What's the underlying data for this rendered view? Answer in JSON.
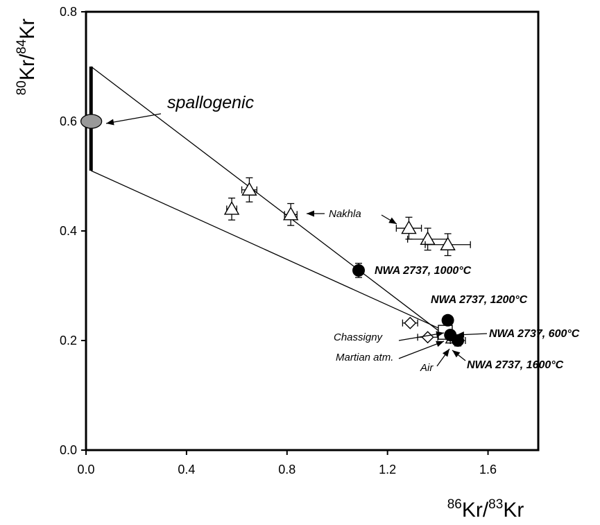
{
  "chart_data": {
    "type": "scatter",
    "title": "",
    "xlabel": {
      "sup1": "86",
      "base1": "Kr/",
      "sup2": "83",
      "base2": "Kr"
    },
    "ylabel": {
      "sup1": "80",
      "base1": "Kr/",
      "sup2": "84",
      "base2": "Kr"
    },
    "xlim": [
      0.0,
      1.8
    ],
    "ylim": [
      0.0,
      0.8
    ],
    "xticks": [
      "0.0",
      "0.4",
      "0.8",
      "1.2",
      "1.6"
    ],
    "xtick_values": [
      0.0,
      0.4,
      0.8,
      1.2,
      1.6
    ],
    "yticks": [
      "0.0",
      "0.2",
      "0.4",
      "0.6",
      "0.8"
    ],
    "ytick_values": [
      0.0,
      0.2,
      0.4,
      0.6,
      0.8
    ],
    "grid": false,
    "series": [
      {
        "label": "Nakhla",
        "marker": "triangle-open",
        "points": [
          {
            "x": 0.58,
            "y": 0.44,
            "xerr": 0.02,
            "yerr": 0.02
          },
          {
            "x": 0.65,
            "y": 0.475,
            "xerr": 0.03,
            "yerr": 0.022
          },
          {
            "x": 0.815,
            "y": 0.43,
            "xerr": 0.025,
            "yerr": 0.02
          },
          {
            "x": 1.285,
            "y": 0.405,
            "xerr": 0.05,
            "yerr": 0.02
          },
          {
            "x": 1.36,
            "y": 0.385,
            "xerr": 0.08,
            "yerr": 0.02
          },
          {
            "x": 1.44,
            "y": 0.375,
            "xerr": 0.09,
            "yerr": 0.02
          }
        ]
      },
      {
        "label": "NWA 2737",
        "marker": "circle-filled",
        "points": [
          {
            "x": 1.085,
            "y": 0.328,
            "xerr": 0.0,
            "yerr": 0.013,
            "label": "NWA 2737, 1000°C"
          },
          {
            "x": 1.44,
            "y": 0.237,
            "xerr": 0.0,
            "yerr": 0.0,
            "label": "NWA 2737, 1200°C"
          },
          {
            "x": 1.48,
            "y": 0.2,
            "xerr": 0.03,
            "yerr": 0.01,
            "label": "NWA 2737, 600°C"
          },
          {
            "x": 1.45,
            "y": 0.21,
            "xerr": 0.0,
            "yerr": 0.0,
            "label": "NWA 2737, 1600°C"
          }
        ]
      },
      {
        "label": "Chassigny",
        "marker": "diamond-open",
        "points": [
          {
            "x": 1.29,
            "y": 0.232,
            "xerr": 0.03,
            "yerr": 0.0
          },
          {
            "x": 1.36,
            "y": 0.206,
            "xerr": 0.04,
            "yerr": 0.0
          }
        ]
      },
      {
        "label": "Martian atm.",
        "marker": "square-open",
        "points": [
          {
            "x": 1.43,
            "y": 0.215,
            "xerr": 0.0,
            "yerr": 0.0
          }
        ]
      },
      {
        "label": "Air",
        "marker": "triangle-open",
        "points": [
          {
            "x": 1.46,
            "y": 0.205,
            "xerr": 0.0,
            "yerr": 0.0
          }
        ]
      },
      {
        "label": "spallogenic",
        "marker": "ellipse-gray",
        "points": [
          {
            "x": 0.01,
            "y": 0.6
          }
        ]
      }
    ],
    "spallogenic_range": {
      "x": 0.02,
      "y_min": 0.51,
      "y_max": 0.7
    },
    "mixing_lines": [
      {
        "from": {
          "x": 0.02,
          "y": 0.7
        },
        "to": {
          "x": 1.44,
          "y": 0.205
        }
      },
      {
        "from": {
          "x": 0.02,
          "y": 0.51
        },
        "to": {
          "x": 1.44,
          "y": 0.215
        }
      }
    ],
    "annotations": [
      {
        "text": "spallogenic",
        "style": "big"
      },
      {
        "text": "Nakhla",
        "style": "italic"
      },
      {
        "text": "NWA 2737, 1000°C",
        "style": "bold"
      },
      {
        "text": "NWA 2737, 1200°C",
        "style": "bold"
      },
      {
        "text": "NWA 2737, 600°C",
        "style": "bold"
      },
      {
        "text": "NWA 2737, 1600°C",
        "style": "bold"
      },
      {
        "text": "Chassigny",
        "style": "italic"
      },
      {
        "text": "Martian atm.",
        "style": "italic"
      },
      {
        "text": "Air",
        "style": "italic"
      }
    ],
    "colors": {
      "axes": "#000000",
      "spallogenic_fill": "#999999",
      "marker_fill_open": "#ffffff",
      "marker_fill_solid": "#000000"
    }
  }
}
